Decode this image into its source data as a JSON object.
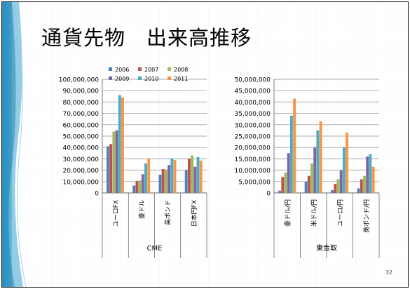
{
  "slide": {
    "title": "通貨先物　出来高推移",
    "page_number": "32"
  },
  "legend": {
    "placement": "top",
    "entries": [
      {
        "name": "2006",
        "color": "#4f81bd"
      },
      {
        "name": "2007",
        "color": "#c0504d"
      },
      {
        "name": "2008",
        "color": "#9bbb59"
      },
      {
        "name": "2009",
        "color": "#8064a2"
      },
      {
        "name": "2010",
        "color": "#4bacc6"
      },
      {
        "name": "2011",
        "color": "#f79646"
      }
    ]
  },
  "chart_data": [
    {
      "type": "bar",
      "title": "",
      "xlabel": "CME",
      "ylabel": "",
      "ylim": [
        0,
        100000000
      ],
      "ytick_step": 10000000,
      "yticks": [
        "0",
        "10,000,000",
        "20,000,000",
        "30,000,000",
        "40,000,000",
        "50,000,000",
        "60,000,000",
        "70,000,000",
        "80,000,000",
        "90,000,000",
        "100,000,000"
      ],
      "grid": true,
      "legend": "top",
      "categories": [
        "ユーロFX",
        "豪ドル",
        "英ポンド",
        "日本円FX"
      ],
      "series": [
        {
          "name": "2006",
          "values": [
            41000000,
            6500000,
            16000000,
            20000000
          ]
        },
        {
          "name": "2007",
          "values": [
            43000000,
            10500000,
            21000000,
            30000000
          ]
        },
        {
          "name": "2008",
          "values": [
            54000000,
            11000000,
            20500000,
            33000000
          ]
        },
        {
          "name": "2009",
          "values": [
            55000000,
            16500000,
            24500000,
            23000000
          ]
        },
        {
          "name": "2010",
          "values": [
            86000000,
            26000000,
            30500000,
            31500000
          ]
        },
        {
          "name": "2011",
          "values": [
            84000000,
            30500000,
            29000000,
            28500000
          ]
        }
      ]
    },
    {
      "type": "bar",
      "title": "",
      "xlabel": "東金取",
      "ylabel": "",
      "ylim": [
        0,
        50000000
      ],
      "ytick_step": 5000000,
      "yticks": [
        "0",
        "5,000,000",
        "10,000,000",
        "15,000,000",
        "20,000,000",
        "25,000,000",
        "30,000,000",
        "35,000,000",
        "40,000,000",
        "45,000,000",
        "50,000,000"
      ],
      "grid": true,
      "legend": "none",
      "categories": [
        "豪ドル/円",
        "米ドル/円",
        "ユーロ/円",
        "英ポンド/円"
      ],
      "series": [
        {
          "name": "2006",
          "values": [
            1000000,
            5000000,
            1200000,
            2000000
          ]
        },
        {
          "name": "2007",
          "values": [
            7000000,
            7500000,
            4000000,
            6000000
          ]
        },
        {
          "name": "2008",
          "values": [
            9000000,
            13000000,
            6000000,
            7500000
          ]
        },
        {
          "name": "2009",
          "values": [
            17500000,
            20000000,
            10000000,
            16000000
          ]
        },
        {
          "name": "2010",
          "values": [
            34000000,
            27500000,
            20000000,
            17000000
          ]
        },
        {
          "name": "2011",
          "values": [
            41500000,
            31500000,
            26500000,
            11500000
          ]
        }
      ]
    }
  ]
}
